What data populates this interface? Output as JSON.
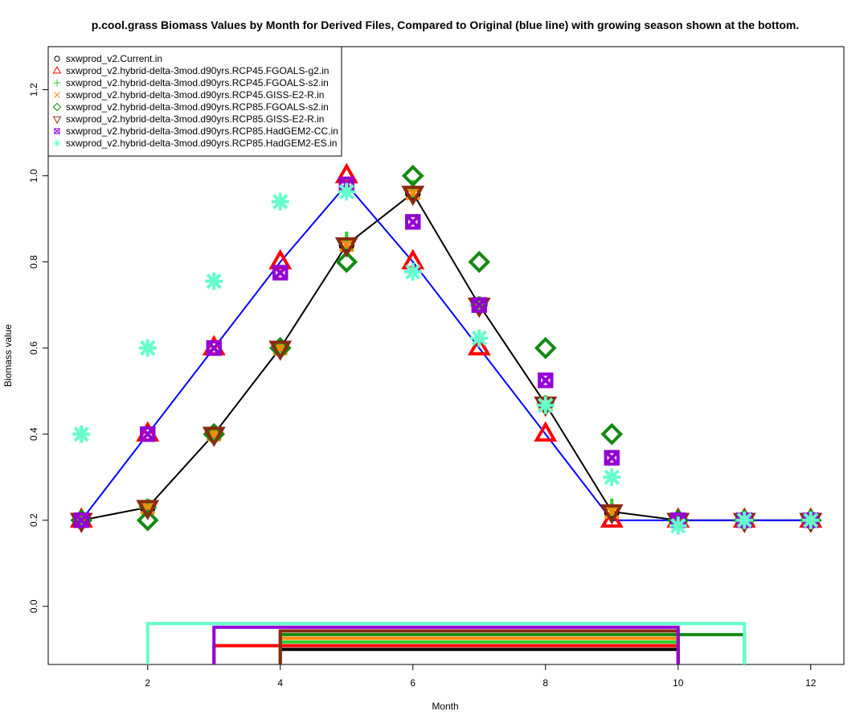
{
  "chart_data": {
    "type": "scatter",
    "title": "p.cool.grass Biomass Values by Month for Derived Files, Compared to Original (blue line) with growing season shown at the bottom.",
    "xlabel": "Month",
    "ylabel": "Biomass value",
    "xlim": [
      0.5,
      12.5
    ],
    "ylim": [
      -0.135,
      1.3
    ],
    "x_ticks": [
      "2",
      "4",
      "6",
      "8",
      "10",
      "12"
    ],
    "y_ticks": [
      "0.0",
      "0.2",
      "0.4",
      "0.6",
      "0.8",
      "1.0",
      "1.2"
    ],
    "grid": false,
    "legend_position": "top-left",
    "x": [
      1,
      2,
      3,
      4,
      5,
      6,
      7,
      8,
      9,
      10,
      11,
      12
    ],
    "reference_line": {
      "color": "#0000ff",
      "values": [
        0.2,
        0.4,
        0.6,
        0.8,
        0.98,
        0.8,
        0.6,
        0.4,
        0.2,
        0.2,
        0.2,
        0.2
      ]
    },
    "series": [
      {
        "name": "sxwprod_v2.Current.in",
        "color": "#000000",
        "marker": "circle",
        "line": true,
        "values": [
          0.2,
          0.23,
          0.4,
          0.6,
          0.84,
          0.96,
          0.7,
          0.47,
          0.22,
          0.2,
          0.2,
          0.2
        ],
        "season": [
          4,
          10
        ]
      },
      {
        "name": "sxwprod_v2.hybrid-delta-3mod.d90yrs.RCP45.FGOALS-g2.in",
        "color": "#ff0000",
        "marker": "triangle-up",
        "values": [
          0.2,
          0.4,
          0.6,
          0.8,
          1.0,
          0.8,
          0.6,
          0.4,
          0.2,
          0.2,
          0.2,
          0.2
        ],
        "season": [
          3,
          10
        ]
      },
      {
        "name": "sxwprod_v2.hybrid-delta-3mod.d90yrs.RCP45.FGOALS-s2.in",
        "color": "#32cd32",
        "marker": "plus",
        "values": [
          0.2,
          0.23,
          0.4,
          0.6,
          0.85,
          0.97,
          0.7,
          0.47,
          0.23,
          0.2,
          0.2,
          0.2
        ],
        "season": [
          4,
          10
        ]
      },
      {
        "name": "sxwprod_v2.hybrid-delta-3mod.d90yrs.RCP45.GISS-E2-R.in",
        "color": "#ff8c00",
        "marker": "cross",
        "values": [
          0.2,
          0.23,
          0.4,
          0.6,
          0.84,
          0.96,
          0.7,
          0.47,
          0.22,
          0.2,
          0.2,
          0.2
        ],
        "season": [
          4,
          10
        ]
      },
      {
        "name": "sxwprod_v2.hybrid-delta-3mod.d90yrs.RCP85.FGOALS-s2.in",
        "color": "#138a13",
        "marker": "diamond",
        "values": [
          0.2,
          0.2,
          0.4,
          0.6,
          0.8,
          1.0,
          0.8,
          0.6,
          0.4,
          0.2,
          0.2,
          0.2
        ],
        "season": [
          4,
          11
        ]
      },
      {
        "name": "sxwprod_v2.hybrid-delta-3mod.d90yrs.RCP85.GISS-E2-R.in",
        "color": "#8b2a12",
        "marker": "triangle-down",
        "values": [
          0.2,
          0.23,
          0.4,
          0.6,
          0.84,
          0.96,
          0.7,
          0.47,
          0.22,
          0.2,
          0.2,
          0.2
        ],
        "season": [
          4,
          10
        ]
      },
      {
        "name": "sxwprod_v2.hybrid-delta-3mod.d90yrs.RCP85.HadGEM2-CC.in",
        "color": "#9400d3",
        "marker": "square-x",
        "values": [
          0.2,
          0.4,
          0.6,
          0.775,
          0.98,
          0.893,
          0.7,
          0.525,
          0.345,
          0.2,
          0.2,
          0.2
        ],
        "season": [
          3,
          10
        ]
      },
      {
        "name": "sxwprod_v2.hybrid-delta-3mod.d90yrs.RCP85.HadGEM2-ES.in",
        "color": "#66ffcc",
        "marker": "asterisk",
        "values": [
          0.4,
          0.6,
          0.755,
          0.94,
          0.963,
          0.777,
          0.623,
          0.467,
          0.3,
          0.187,
          0.2,
          0.2
        ],
        "season": [
          2,
          11
        ]
      }
    ]
  }
}
